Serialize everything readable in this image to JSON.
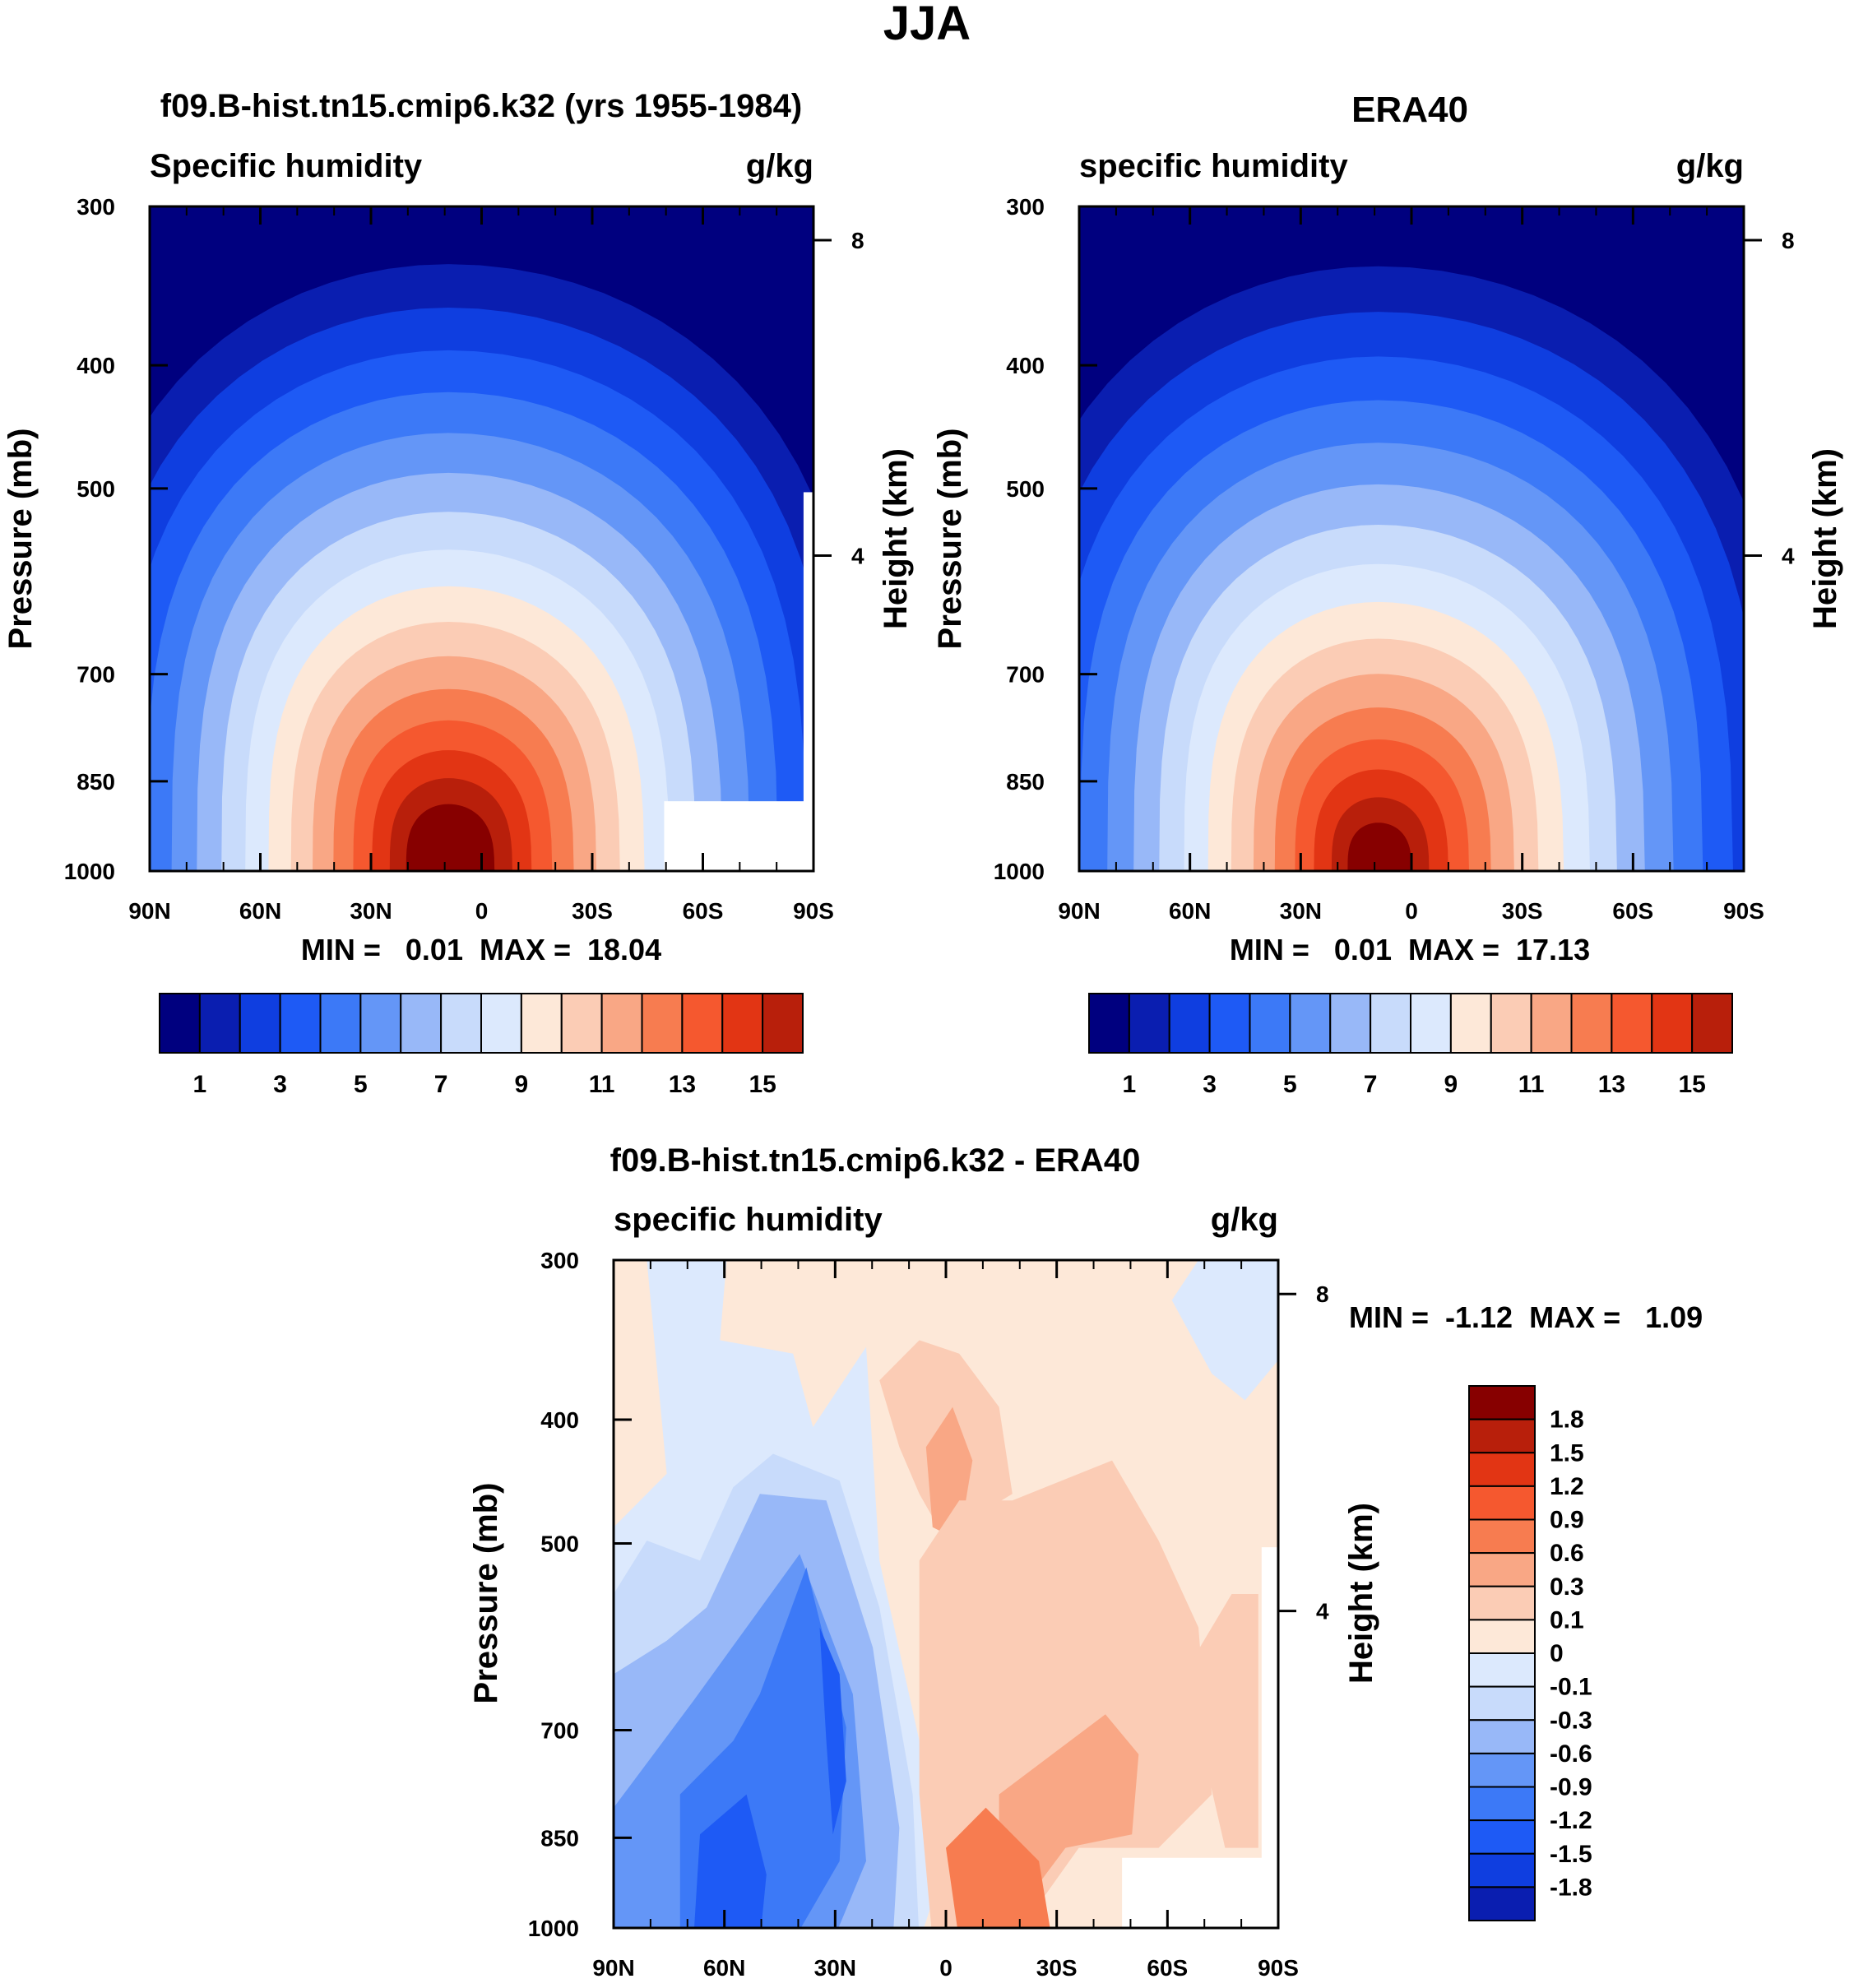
{
  "figure": {
    "title": "JJA"
  },
  "colors": {
    "abs_levels": [
      "#00007f",
      "#0a1eb0",
      "#0f3ee0",
      "#1e5af5",
      "#3c79f7",
      "#6496f7",
      "#98b8f8",
      "#c8dbfb",
      "#dce9fd",
      "#fde8d8",
      "#fbccb5",
      "#f9a785",
      "#f77c50",
      "#f5582f",
      "#e23514",
      "#b81f0b",
      "#870000"
    ],
    "diff_levels": [
      "#00007f",
      "#0a1eb0",
      "#0f3ee0",
      "#1e5af5",
      "#3c79f7",
      "#6496f7",
      "#98b8f8",
      "#c8dbfb",
      "#dce9fd",
      "#fde8d8",
      "#fbccb5",
      "#f9a785",
      "#f77c50",
      "#f5582f",
      "#e23514",
      "#b81f0b",
      "#870000"
    ]
  },
  "chart_data": [
    {
      "id": "model",
      "type": "heatmap",
      "title": "f09.B-hist.tn15.cmip6.k32 (yrs 1955-1984)",
      "left_label": "Specific humidity",
      "units": "g/kg",
      "ylabel": "Pressure (mb)",
      "right_label": "Height (km)",
      "xticks": [
        "90N",
        "60N",
        "30N",
        "0",
        "30S",
        "60S",
        "90S"
      ],
      "yticks": [
        "300",
        "400",
        "500",
        "700",
        "850",
        "1000"
      ],
      "right_ticks": [
        "8",
        "4"
      ],
      "min_max": "MIN =   0.01  MAX =  18.04",
      "min": 0.01,
      "max": 18.04,
      "peak_lat": 8,
      "peak_pressure": 1000,
      "colorbar_labels": [
        "1",
        "3",
        "5",
        "7",
        "9",
        "11",
        "13",
        "15"
      ],
      "missing_region": "south of ~50S near surface"
    },
    {
      "id": "obs",
      "type": "heatmap",
      "title": "ERA40",
      "left_label": "specific humidity",
      "units": "g/kg",
      "ylabel": "Pressure (mb)",
      "right_label": "Height (km)",
      "xticks": [
        "90N",
        "60N",
        "30N",
        "0",
        "30S",
        "60S",
        "90S"
      ],
      "yticks": [
        "300",
        "400",
        "500",
        "700",
        "850",
        "1000"
      ],
      "right_ticks": [
        "8",
        "4"
      ],
      "min_max": "MIN =   0.01  MAX =  17.13",
      "min": 0.01,
      "max": 17.13,
      "peak_lat": 8,
      "peak_pressure": 1000,
      "colorbar_labels": [
        "1",
        "3",
        "5",
        "7",
        "9",
        "11",
        "13",
        "15"
      ]
    },
    {
      "id": "diff",
      "type": "heatmap",
      "title": "f09.B-hist.tn15.cmip6.k32 - ERA40",
      "left_label": "specific humidity",
      "units": "g/kg",
      "ylabel": "Pressure (mb)",
      "right_label": "Height (km)",
      "xticks": [
        "90N",
        "60N",
        "30N",
        "0",
        "30S",
        "60S",
        "90S"
      ],
      "yticks": [
        "300",
        "400",
        "500",
        "700",
        "850",
        "1000"
      ],
      "right_ticks": [
        "8",
        "4"
      ],
      "min_max": "MIN =  -1.12  MAX =   1.09",
      "min": -1.12,
      "max": 1.09,
      "colorbar_labels": [
        "1.8",
        "1.5",
        "1.2",
        "0.9",
        "0.6",
        "0.3",
        "0.1",
        "0",
        "-0.1",
        "-0.3",
        "-0.6",
        "-0.9",
        "-1.2",
        "-1.5",
        "-1.8"
      ],
      "contour_levels": [
        -1.8,
        -1.5,
        -1.2,
        -0.9,
        -0.6,
        -0.3,
        -0.1,
        0,
        0.1,
        0.3,
        0.6,
        0.9,
        1.2,
        1.5,
        1.8
      ]
    }
  ]
}
